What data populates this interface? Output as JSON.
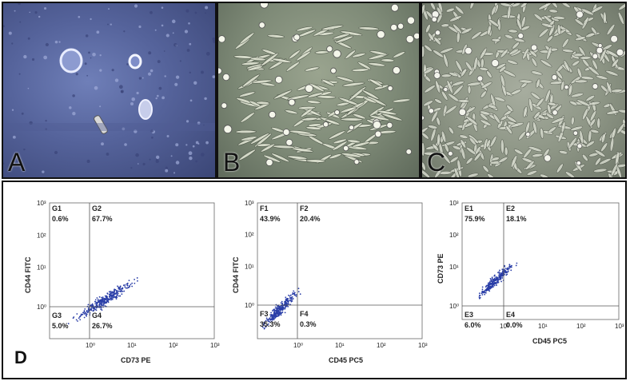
{
  "panels": {
    "a": {
      "label": "A"
    },
    "b": {
      "label": "B"
    },
    "c": {
      "label": "C"
    },
    "d": {
      "label": "D"
    }
  },
  "flow_plots": [
    {
      "ylabel": "CD44 FITC",
      "xlabel": "CD73 PE",
      "quadrants": {
        "ul_name": "G1",
        "ul_pct": "0.6%",
        "ur_name": "G2",
        "ur_pct": "67.7%",
        "ll_name": "G3",
        "ll_pct": "5.0%",
        "lr_name": "G4",
        "lr_pct": "26.7%"
      }
    },
    {
      "ylabel": "CD44 FITC",
      "xlabel": "CD45 PC5",
      "quadrants": {
        "ul_name": "F1",
        "ul_pct": "43.9%",
        "ur_name": "F2",
        "ur_pct": "20.4%",
        "ll_name": "F3",
        "ll_pct": "35.3%",
        "lr_name": "F4",
        "lr_pct": "0.3%"
      }
    },
    {
      "ylabel": "CD73 PE",
      "xlabel": "CD45 PC5",
      "quadrants": {
        "ul_name": "E1",
        "ul_pct": "75.9%",
        "ur_name": "E2",
        "ur_pct": "18.1%",
        "ll_name": "E3",
        "ll_pct": "6.0%",
        "lr_name": "E4",
        "lr_pct": "0.0%"
      }
    }
  ],
  "tick_labels": {
    "x": [
      "10⁰",
      "10¹",
      "10²",
      "10³"
    ],
    "y": [
      "10⁰",
      "10¹",
      "10²",
      "10³"
    ]
  },
  "colors": {
    "dots": "#2b3fa8",
    "frame": "#111111"
  }
}
